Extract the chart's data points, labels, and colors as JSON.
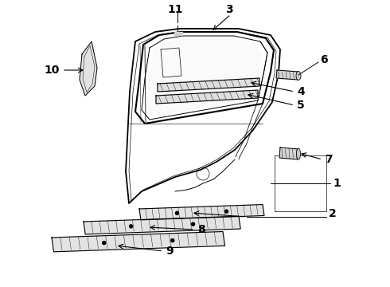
{
  "bg_color": "#ffffff",
  "line_color": "#000000",
  "figsize": [
    4.9,
    3.6
  ],
  "dpi": 100,
  "label_fontsize": 10
}
